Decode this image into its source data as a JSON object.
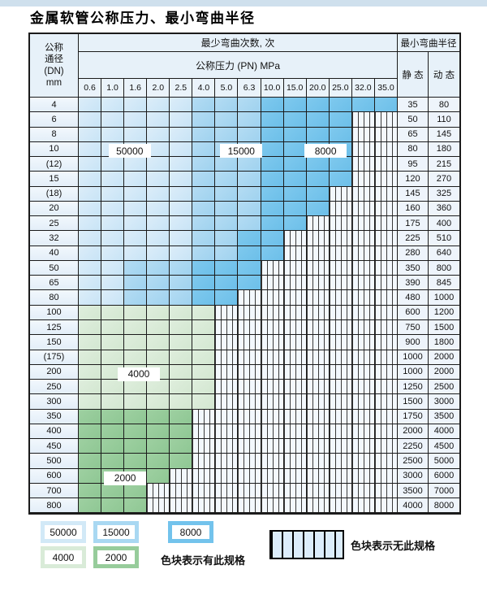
{
  "page": {
    "title": "金属软管公称压力、最小弯曲半径"
  },
  "table": {
    "header": {
      "dn_lines": [
        "公称",
        "通径",
        "(DN)",
        "mm"
      ],
      "bend_cycles": "最少弯曲次数, 次",
      "pressure_title": "公称压力 (PN) MPa",
      "radius_title": "最小弯曲半径",
      "static_label": "静 态",
      "dynamic_label": "动 态",
      "pressures": [
        "0.6",
        "1.0",
        "1.6",
        "2.0",
        "2.5",
        "4.0",
        "5.0",
        "6.3",
        "10.0",
        "15.0",
        "20.0",
        "25.0",
        "32.0",
        "35.0"
      ]
    },
    "zone_colors": {
      "50000": "#d2e9f7",
      "15000": "#a9d8f2",
      "8000": "#73c3ec",
      "4000": "#d9ebd8",
      "2000": "#97cc9b"
    },
    "zone_code_map": {
      "L": "50000",
      "M": "15000",
      "D": "8000",
      "F": "4000",
      "T": "2000",
      "N": "no-spec"
    },
    "rows": [
      {
        "dn": "4",
        "cells": "LLLLLMMMDDDDDD",
        "static": "35",
        "dynamic": "80"
      },
      {
        "dn": "6",
        "cells": "LLLLLMMMDDDDNN",
        "static": "50",
        "dynamic": "110"
      },
      {
        "dn": "8",
        "cells": "LLLLLMMMDDDDNN",
        "static": "65",
        "dynamic": "145"
      },
      {
        "dn": "10",
        "cells": "LLLLLMMMDDDDNN",
        "static": "80",
        "dynamic": "180"
      },
      {
        "dn": "(12)",
        "cells": "LLLLLMMMDDDDNN",
        "static": "95",
        "dynamic": "215"
      },
      {
        "dn": "15",
        "cells": "LLLLLMMMDDDDNN",
        "static": "120",
        "dynamic": "270"
      },
      {
        "dn": "(18)",
        "cells": "LLLLLMMMDDDNNN",
        "static": "145",
        "dynamic": "325"
      },
      {
        "dn": "20",
        "cells": "LLLLLMMMDDDNNN",
        "static": "160",
        "dynamic": "360"
      },
      {
        "dn": "25",
        "cells": "LLLLLMMMDDNNNN",
        "static": "175",
        "dynamic": "400"
      },
      {
        "dn": "32",
        "cells": "LLLLLMMDDNNNNN",
        "static": "225",
        "dynamic": "510"
      },
      {
        "dn": "40",
        "cells": "LLLLLMMDDNNNNN",
        "static": "280",
        "dynamic": "640"
      },
      {
        "dn": "50",
        "cells": "LLMMMDDDNNNNNN",
        "static": "350",
        "dynamic": "800"
      },
      {
        "dn": "65",
        "cells": "LLMMMDDDNNNNNN",
        "static": "390",
        "dynamic": "845"
      },
      {
        "dn": "80",
        "cells": "LLMMMDDNNNNNNN",
        "static": "480",
        "dynamic": "1000"
      },
      {
        "dn": "100",
        "cells": "FFFFFFNNNNNNNN",
        "static": "600",
        "dynamic": "1200"
      },
      {
        "dn": "125",
        "cells": "FFFFFFNNNNNNNN",
        "static": "750",
        "dynamic": "1500"
      },
      {
        "dn": "150",
        "cells": "FFFFFFNNNNNNNN",
        "static": "900",
        "dynamic": "1800"
      },
      {
        "dn": "(175)",
        "cells": "FFFFFFNNNNNNNN",
        "static": "1000",
        "dynamic": "2000"
      },
      {
        "dn": "200",
        "cells": "FFFFFFNNNNNNNN",
        "static": "1000",
        "dynamic": "2000"
      },
      {
        "dn": "250",
        "cells": "FFFFFFNNNNNNNN",
        "static": "1250",
        "dynamic": "2500"
      },
      {
        "dn": "300",
        "cells": "FFFFFFNNNNNNNN",
        "static": "1500",
        "dynamic": "3000"
      },
      {
        "dn": "350",
        "cells": "TTTTTNNNNNNNNN",
        "static": "1750",
        "dynamic": "3500"
      },
      {
        "dn": "400",
        "cells": "TTTTTNNNNNNNNN",
        "static": "2000",
        "dynamic": "4000"
      },
      {
        "dn": "450",
        "cells": "TTTTTNNNNNNNNN",
        "static": "2250",
        "dynamic": "4500"
      },
      {
        "dn": "500",
        "cells": "TTTTTNNNNNNNNN",
        "static": "2500",
        "dynamic": "5000"
      },
      {
        "dn": "600",
        "cells": "TTTTNNNNNNNNNN",
        "static": "3000",
        "dynamic": "6000"
      },
      {
        "dn": "700",
        "cells": "TTTNNNNNNNNNNN",
        "static": "3500",
        "dynamic": "7000"
      },
      {
        "dn": "800",
        "cells": "TTTNNNNNNNNNNN",
        "static": "4000",
        "dynamic": "8000"
      }
    ],
    "overlay_labels": [
      {
        "text": "50000",
        "row": "10",
        "col": 2.2
      },
      {
        "text": "15000",
        "row": "10",
        "col": 7.1
      },
      {
        "text": "8000",
        "row": "10",
        "col": 10.8
      },
      {
        "text": "4000",
        "row": "200",
        "col": 2.6
      },
      {
        "text": "2000",
        "row": "600",
        "col": 2.0
      }
    ]
  },
  "legend": {
    "chips": [
      {
        "label": "50000",
        "color": "#d2e9f7"
      },
      {
        "label": "15000",
        "color": "#a9d8f2"
      },
      {
        "label": "8000",
        "color": "#73c3ec"
      },
      {
        "label": "4000",
        "color": "#d9ebd8"
      },
      {
        "label": "2000",
        "color": "#97cc9b"
      }
    ],
    "has_spec_text": "色块表示有此规格",
    "no_spec_text": "色块表示无此规格"
  }
}
